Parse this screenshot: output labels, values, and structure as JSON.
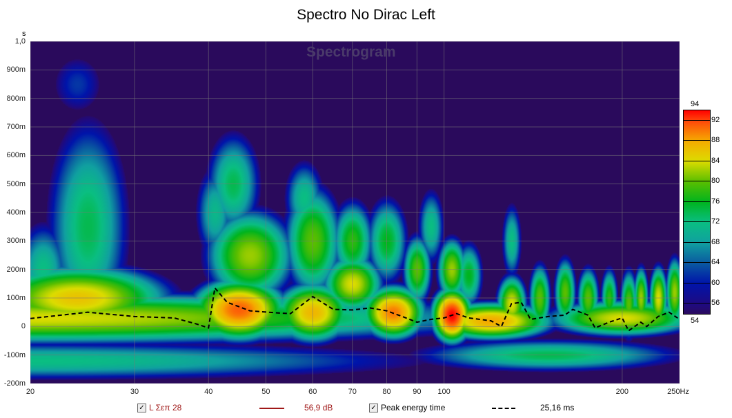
{
  "chart_data": {
    "type": "heatmap",
    "title": "Spectro No Dirac Left",
    "watermark": "Spectrogram",
    "xlabel": "Hz",
    "ylabel": "s",
    "xscale": "log",
    "xlim": [
      20,
      250
    ],
    "ylim": [
      -0.2,
      1.0
    ],
    "x_ticks": [
      "20",
      "30",
      "40",
      "50",
      "60",
      "70",
      "80",
      "90",
      "100",
      "200",
      "250Hz"
    ],
    "x_tick_values": [
      20,
      30,
      40,
      50,
      60,
      70,
      80,
      90,
      100,
      200,
      250
    ],
    "y_ticks": [
      "1,0",
      "900m",
      "800m",
      "700m",
      "600m",
      "500m",
      "400m",
      "300m",
      "200m",
      "100m",
      "0",
      "-100m",
      "-200m"
    ],
    "y_tick_values": [
      1.0,
      0.9,
      0.8,
      0.7,
      0.6,
      0.5,
      0.4,
      0.3,
      0.2,
      0.1,
      0,
      -0.1,
      -0.2
    ],
    "colorbar": {
      "min_label": "54",
      "max_label": "94",
      "ticks": [
        "92",
        "88",
        "84",
        "80",
        "76",
        "72",
        "68",
        "64",
        "60",
        "56"
      ],
      "range": [
        54,
        94
      ],
      "unit": "dB"
    },
    "energy_blobs": [
      [
        20,
        0.03,
        84,
        0.6,
        0.07
      ],
      [
        20,
        -0.12,
        72,
        0.6,
        0.06
      ],
      [
        24,
        0.1,
        86,
        0.12,
        0.09
      ],
      [
        25,
        0.35,
        74,
        0.06,
        0.33
      ],
      [
        24,
        0.85,
        62,
        0.05,
        0.12
      ],
      [
        21,
        0.2,
        72,
        0.04,
        0.15
      ],
      [
        45,
        0.06,
        91,
        0.06,
        0.08
      ],
      [
        47,
        0.25,
        82,
        0.06,
        0.13
      ],
      [
        44,
        0.5,
        74,
        0.04,
        0.16
      ],
      [
        41,
        0.4,
        71,
        0.03,
        0.15
      ],
      [
        60,
        0.05,
        87,
        0.05,
        0.08
      ],
      [
        60,
        0.3,
        80,
        0.04,
        0.16
      ],
      [
        58,
        0.45,
        72,
        0.03,
        0.12
      ],
      [
        70,
        0.3,
        78,
        0.03,
        0.12
      ],
      [
        70,
        0.15,
        84,
        0.04,
        0.08
      ],
      [
        82,
        0.05,
        90,
        0.04,
        0.07
      ],
      [
        80,
        0.3,
        76,
        0.03,
        0.13
      ],
      [
        90,
        0.2,
        80,
        0.02,
        0.1
      ],
      [
        95,
        0.35,
        72,
        0.02,
        0.12
      ],
      [
        103,
        0.04,
        94,
        0.025,
        0.07
      ],
      [
        103,
        0.2,
        82,
        0.02,
        0.09
      ],
      [
        110,
        0.18,
        76,
        0.02,
        0.1
      ],
      [
        130,
        0.08,
        84,
        0.02,
        0.08
      ],
      [
        130,
        0.3,
        72,
        0.015,
        0.12
      ],
      [
        145,
        0.1,
        80,
        0.015,
        0.1
      ],
      [
        160,
        0.12,
        80,
        0.015,
        0.1
      ],
      [
        175,
        0.1,
        80,
        0.015,
        0.09
      ],
      [
        190,
        0.1,
        78,
        0.012,
        0.09
      ],
      [
        205,
        0.08,
        80,
        0.012,
        0.1
      ],
      [
        215,
        0.1,
        82,
        0.01,
        0.09
      ],
      [
        230,
        0.1,
        84,
        0.012,
        0.09
      ],
      [
        245,
        0.12,
        82,
        0.012,
        0.1
      ],
      [
        120,
        0.02,
        88,
        0.08,
        0.05
      ],
      [
        200,
        0.03,
        84,
        0.1,
        0.05
      ],
      [
        150,
        -0.1,
        74,
        0.2,
        0.05
      ]
    ],
    "series": [
      {
        "name": "Peak energy time",
        "style": "dashed",
        "x": [
          20,
          25,
          30,
          35,
          38,
          40,
          41,
          43,
          47,
          52,
          55,
          60,
          65,
          70,
          75,
          80,
          85,
          90,
          95,
          100,
          105,
          110,
          120,
          125,
          130,
          135,
          140,
          150,
          160,
          165,
          175,
          180,
          190,
          200,
          205,
          215,
          220,
          230,
          240,
          250
        ],
        "y": [
          0.028,
          0.05,
          0.035,
          0.03,
          0.01,
          -0.005,
          0.135,
          0.085,
          0.055,
          0.048,
          0.045,
          0.105,
          0.06,
          0.058,
          0.065,
          0.055,
          0.035,
          0.015,
          0.025,
          0.03,
          0.045,
          0.03,
          0.02,
          0,
          0.08,
          0.085,
          0.025,
          0.035,
          0.04,
          0.06,
          0.04,
          -0.005,
          0.015,
          0.03,
          -0.015,
          0.015,
          0,
          0.035,
          0.05,
          0.025
        ]
      }
    ]
  },
  "legend": {
    "trace_name": "L Σεπ 28",
    "trace_value": "56,9 dB",
    "peak_label": "Peak energy time",
    "peak_value": "25,16 ms"
  }
}
